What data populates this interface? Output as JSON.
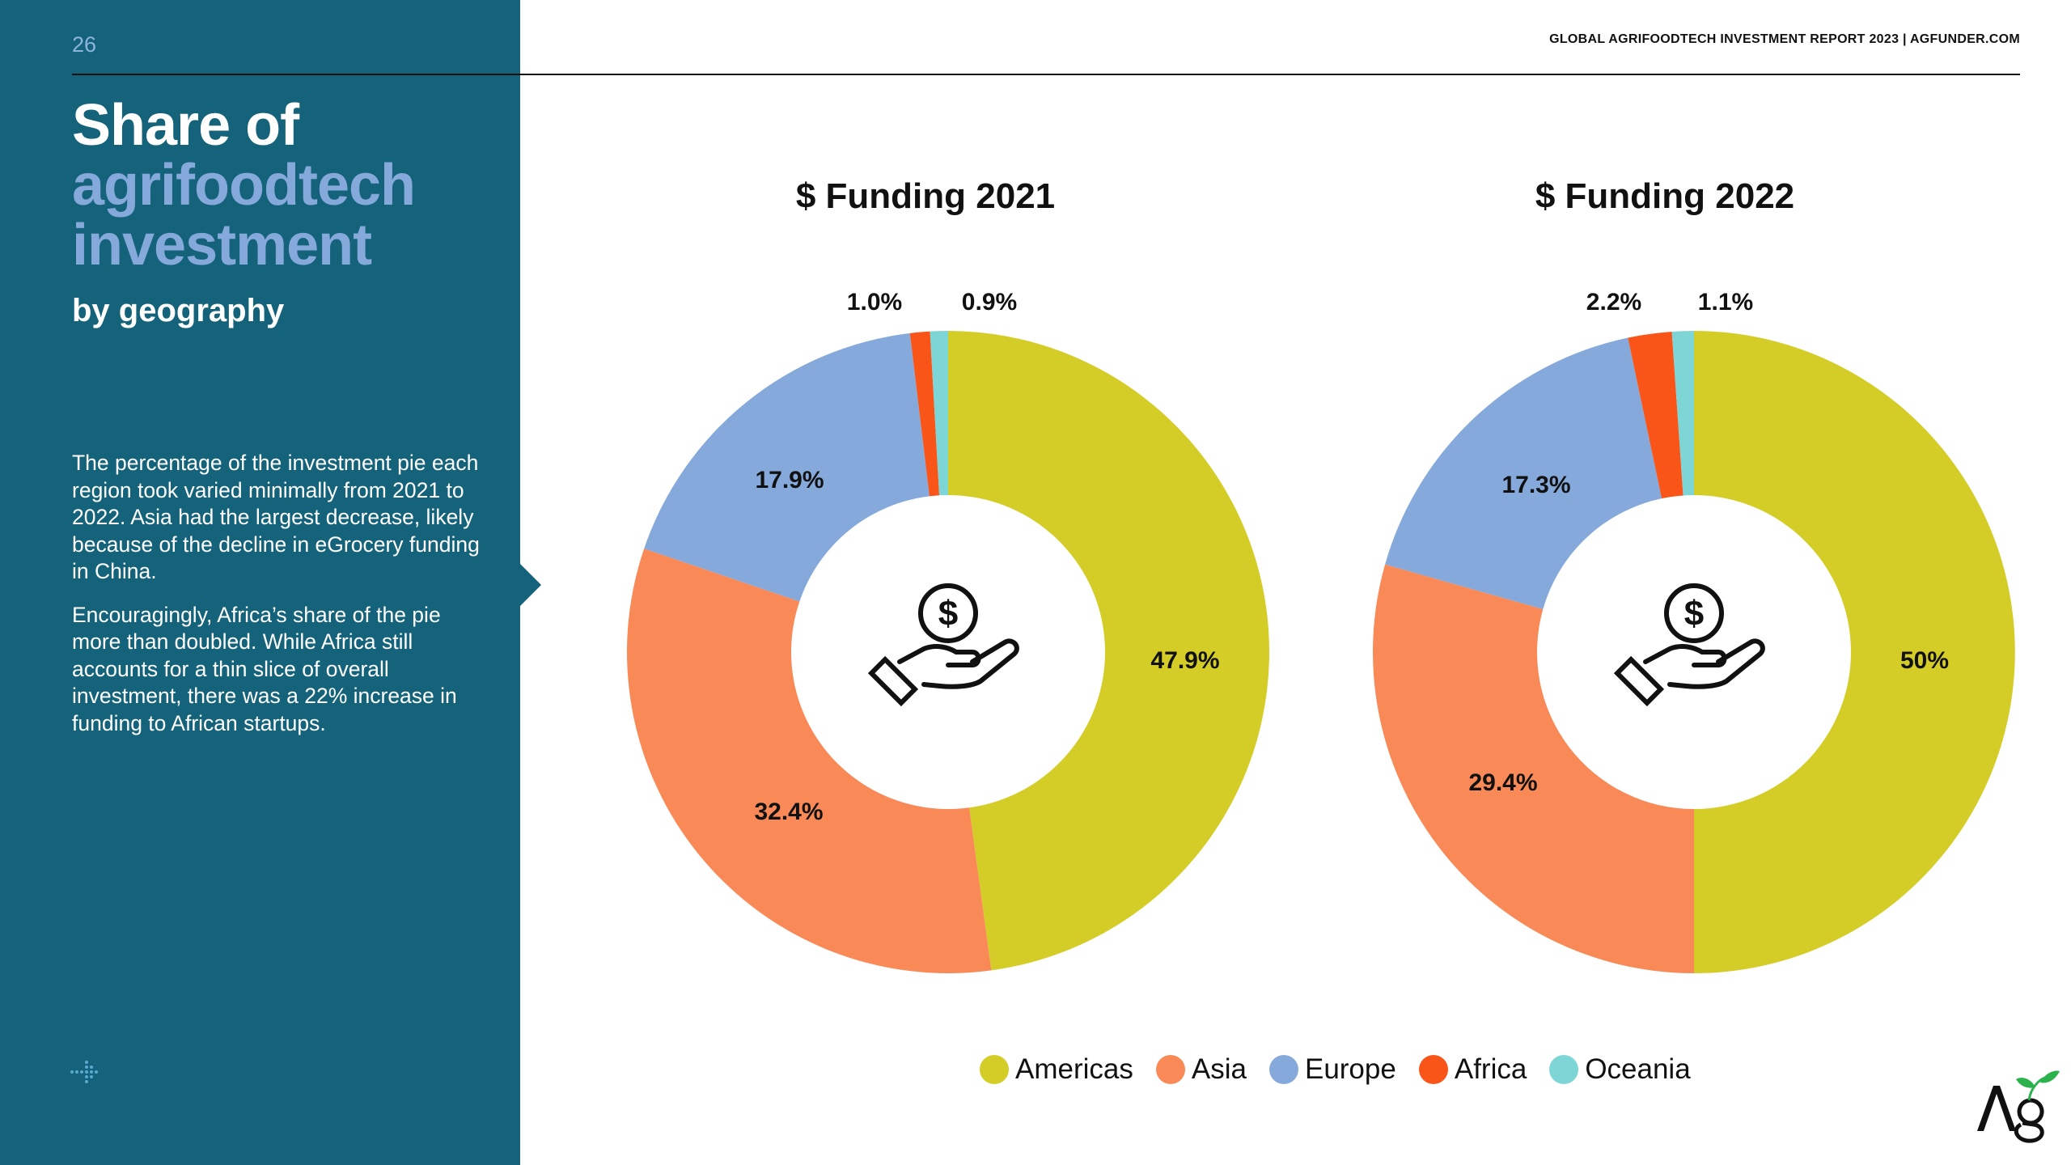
{
  "page_number": "26",
  "header": "GLOBAL AGRIFOODTECH INVESTMENT REPORT 2023 | AGFUNDER.COM",
  "title": {
    "line1": "Share of",
    "line2": "agrifoodtech",
    "line3": "investment",
    "subtitle": "by geography"
  },
  "body": [
    "The percentage of the investment pie each region took varied minimally from 2021 to 2022. Asia had the largest decrease, likely because of the decline in eGrocery funding in China.",
    "Encouragingly, Africa’s share of the pie more than doubled. While Africa still accounts for a thin slice of overall investment, there was a 22% increase in funding to African startups."
  ],
  "logo_text": "Ag",
  "colors": {
    "sidebar": "#14637a",
    "Americas": "#d5cd27",
    "Asia": "#f98a58",
    "Europe": "#86a9dc",
    "Africa": "#fa5518",
    "Oceania": "#7dd5d6"
  },
  "chart_data": [
    {
      "type": "pie",
      "title": "$ Funding 2021",
      "categories": [
        "Americas",
        "Asia",
        "Europe",
        "Africa",
        "Oceania"
      ],
      "values": [
        47.9,
        32.4,
        17.9,
        1.0,
        0.9
      ],
      "labels": [
        "47.9%",
        "32.4%",
        "17.9%",
        "1.0%",
        "0.9%"
      ],
      "center_icon": "hand-dollar-icon"
    },
    {
      "type": "pie",
      "title": "$ Funding 2022",
      "categories": [
        "Americas",
        "Asia",
        "Europe",
        "Africa",
        "Oceania"
      ],
      "values": [
        50,
        29.4,
        17.3,
        2.2,
        1.1
      ],
      "labels": [
        "50%",
        "29.4%",
        "17.3%",
        "2.2%",
        "1.1%"
      ],
      "center_icon": "hand-dollar-icon"
    }
  ],
  "legend": [
    "Americas",
    "Asia",
    "Europe",
    "Africa",
    "Oceania"
  ]
}
